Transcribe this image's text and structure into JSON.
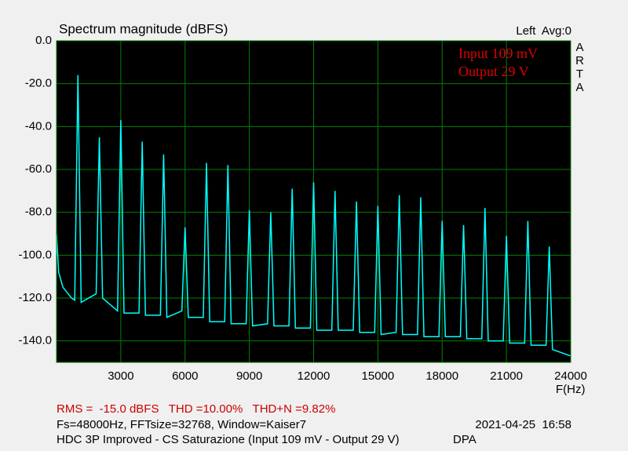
{
  "chart_data": {
    "type": "line",
    "title": "Spectrum magnitude (dBFS)",
    "channel_info": "Left  Avg:0",
    "brand": "ARTA",
    "annotations": [
      "Input 109 mV",
      "Output 29 V"
    ],
    "x_label": "F(Hz)",
    "footer": {
      "measurements": "RMS =  -15.0 dBFS   THD =10.00%   THD+N =9.82%",
      "settings": "Fs=48000Hz, FFTsize=32768, Window=Kaiser7",
      "timestamp": "2021-04-25  16:58",
      "description": "HDC 3P Improved - CS Saturazione (Input 109 mV - Output 29 V)",
      "tag": "DPA"
    },
    "xlim": [
      0,
      24000
    ],
    "xticks": [
      3000,
      6000,
      9000,
      12000,
      15000,
      18000,
      21000,
      24000
    ],
    "ylim": [
      -150,
      0
    ],
    "yticks": [
      {
        "value": 0,
        "label": "0.0"
      },
      {
        "value": -20,
        "label": "-20.0"
      },
      {
        "value": -40,
        "label": "-40.0"
      },
      {
        "value": -60,
        "label": "-60.0"
      },
      {
        "value": -80,
        "label": "-80.0"
      },
      {
        "value": -100,
        "label": "-100.0"
      },
      {
        "value": -120,
        "label": "-120.0"
      },
      {
        "value": -140,
        "label": "-140.0"
      }
    ],
    "grid": true,
    "x": [
      0,
      100,
      300,
      700,
      850,
      1000,
      1150,
      1850,
      2000,
      2150,
      2850,
      3000,
      3150,
      3850,
      4000,
      4150,
      4850,
      5000,
      5150,
      5850,
      6000,
      6150,
      6850,
      7000,
      7150,
      7850,
      8000,
      8150,
      8850,
      9000,
      9150,
      9850,
      10000,
      10150,
      10850,
      11000,
      11150,
      11850,
      12000,
      12150,
      12850,
      13000,
      13150,
      13850,
      14000,
      14150,
      14850,
      15000,
      15150,
      15850,
      16000,
      16150,
      16850,
      17000,
      17150,
      17850,
      18000,
      18150,
      18850,
      19000,
      19150,
      19850,
      20000,
      20150,
      20850,
      21000,
      21150,
      21850,
      22000,
      22150,
      22850,
      23000,
      23150,
      24000
    ],
    "series": [
      {
        "name": "Left",
        "color": "#00ffff",
        "values": [
          -90,
          -108,
          -115,
          -120,
          -121,
          -16,
          -122,
          -118,
          -45,
          -120,
          -126,
          -37,
          -127,
          -127,
          -47,
          -128,
          -128,
          -53,
          -129,
          -126,
          -87,
          -129,
          -129,
          -57,
          -131,
          -131,
          -58,
          -132,
          -132,
          -79,
          -133,
          -132,
          -80,
          -133,
          -133,
          -69,
          -134,
          -134,
          -66,
          -135,
          -135,
          -70,
          -135,
          -135,
          -75,
          -136,
          -136,
          -77,
          -137,
          -136,
          -72,
          -137,
          -137,
          -73,
          -138,
          -138,
          -84,
          -138,
          -138,
          -86,
          -139,
          -139,
          -78,
          -140,
          -140,
          -91,
          -141,
          -141,
          -84,
          -142,
          -142,
          -96,
          -144,
          -147
        ]
      }
    ]
  }
}
